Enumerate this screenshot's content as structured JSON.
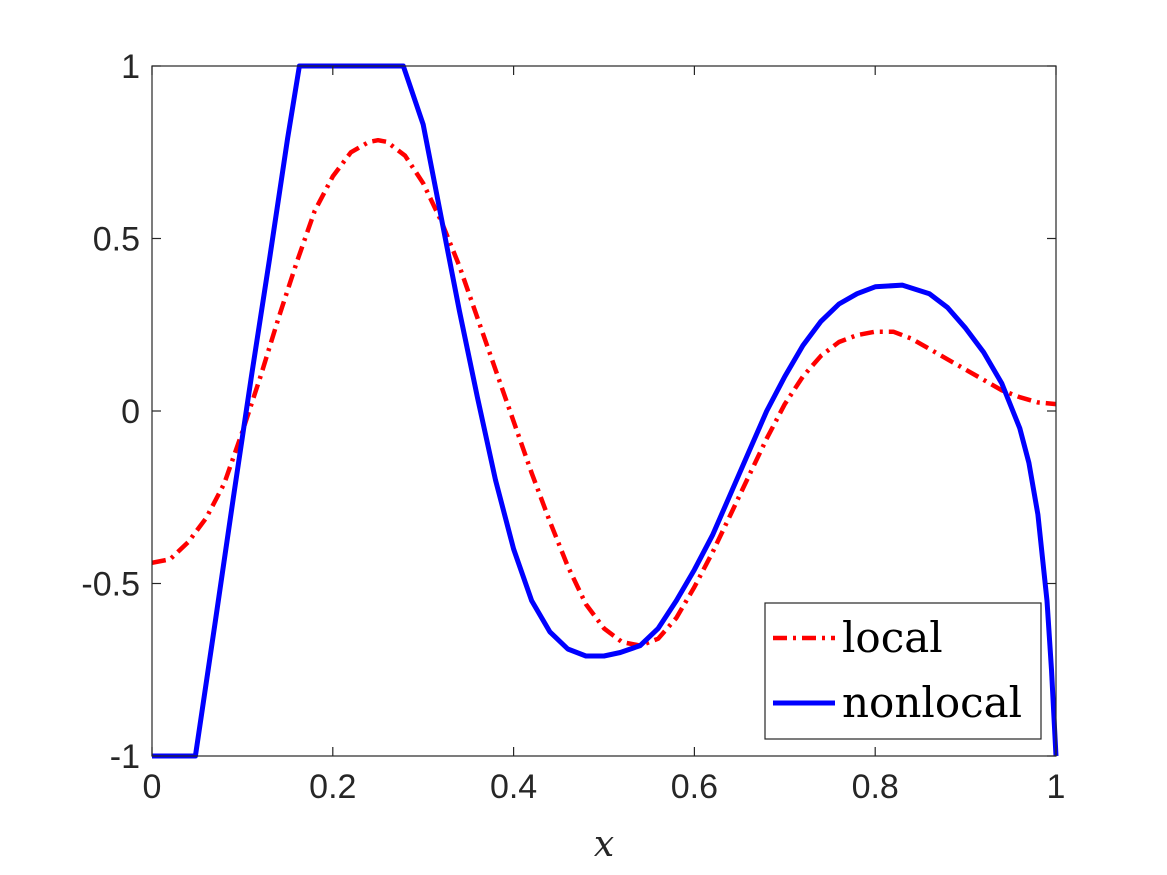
{
  "chart_data": {
    "type": "line",
    "xlabel": "x",
    "ylabel": "",
    "title": "",
    "xlim": [
      0,
      1
    ],
    "ylim": [
      -1,
      1
    ],
    "xticks": [
      0,
      0.2,
      0.4,
      0.6,
      0.8,
      1
    ],
    "xtick_labels": [
      "0",
      "0.2",
      "0.4",
      "0.6",
      "0.8",
      "1"
    ],
    "yticks": [
      -1,
      -0.5,
      0,
      0.5,
      1
    ],
    "ytick_labels": [
      "-1",
      "-0.5",
      "0",
      "0.5",
      "1"
    ],
    "grid": false,
    "legend_position": "bottom-right",
    "series": [
      {
        "name": "local",
        "color": "#ff0000",
        "style": "dash-dot",
        "x": [
          0,
          0.02,
          0.04,
          0.06,
          0.08,
          0.1,
          0.12,
          0.14,
          0.16,
          0.18,
          0.2,
          0.22,
          0.24,
          0.25,
          0.26,
          0.28,
          0.3,
          0.32,
          0.34,
          0.36,
          0.38,
          0.4,
          0.42,
          0.44,
          0.46,
          0.48,
          0.5,
          0.52,
          0.54,
          0.56,
          0.58,
          0.6,
          0.62,
          0.64,
          0.66,
          0.68,
          0.7,
          0.72,
          0.74,
          0.76,
          0.78,
          0.8,
          0.82,
          0.84,
          0.86,
          0.88,
          0.9,
          0.92,
          0.94,
          0.96,
          0.98,
          1
        ],
        "y": [
          -0.44,
          -0.43,
          -0.38,
          -0.31,
          -0.21,
          -0.06,
          0.1,
          0.27,
          0.43,
          0.58,
          0.68,
          0.75,
          0.78,
          0.785,
          0.78,
          0.74,
          0.66,
          0.55,
          0.42,
          0.27,
          0.12,
          -0.03,
          -0.18,
          -0.32,
          -0.45,
          -0.56,
          -0.63,
          -0.67,
          -0.68,
          -0.66,
          -0.6,
          -0.51,
          -0.41,
          -0.3,
          -0.19,
          -0.08,
          0.02,
          0.1,
          0.16,
          0.2,
          0.22,
          0.23,
          0.23,
          0.21,
          0.18,
          0.15,
          0.12,
          0.09,
          0.06,
          0.04,
          0.025,
          0.02
        ]
      },
      {
        "name": "nonlocal",
        "color": "#0000ff",
        "style": "solid",
        "x": [
          0,
          0.048,
          0.07,
          0.09,
          0.11,
          0.13,
          0.15,
          0.163,
          0.2,
          0.24,
          0.278,
          0.3,
          0.32,
          0.34,
          0.36,
          0.38,
          0.4,
          0.42,
          0.44,
          0.46,
          0.48,
          0.5,
          0.518,
          0.54,
          0.56,
          0.58,
          0.6,
          0.62,
          0.64,
          0.66,
          0.68,
          0.7,
          0.72,
          0.74,
          0.76,
          0.78,
          0.8,
          0.83,
          0.86,
          0.88,
          0.9,
          0.92,
          0.94,
          0.96,
          0.97,
          0.98,
          0.99,
          0.995,
          1
        ],
        "y": [
          -1,
          -1,
          -0.61,
          -0.25,
          0.1,
          0.44,
          0.79,
          1,
          1,
          1,
          1,
          0.83,
          0.56,
          0.29,
          0.04,
          -0.2,
          -0.4,
          -0.55,
          -0.64,
          -0.69,
          -0.71,
          -0.71,
          -0.7,
          -0.68,
          -0.63,
          -0.55,
          -0.46,
          -0.36,
          -0.24,
          -0.12,
          0,
          0.1,
          0.19,
          0.26,
          0.31,
          0.34,
          0.36,
          0.365,
          0.34,
          0.3,
          0.24,
          0.17,
          0.08,
          -0.05,
          -0.15,
          -0.3,
          -0.55,
          -0.75,
          -1
        ]
      }
    ]
  }
}
